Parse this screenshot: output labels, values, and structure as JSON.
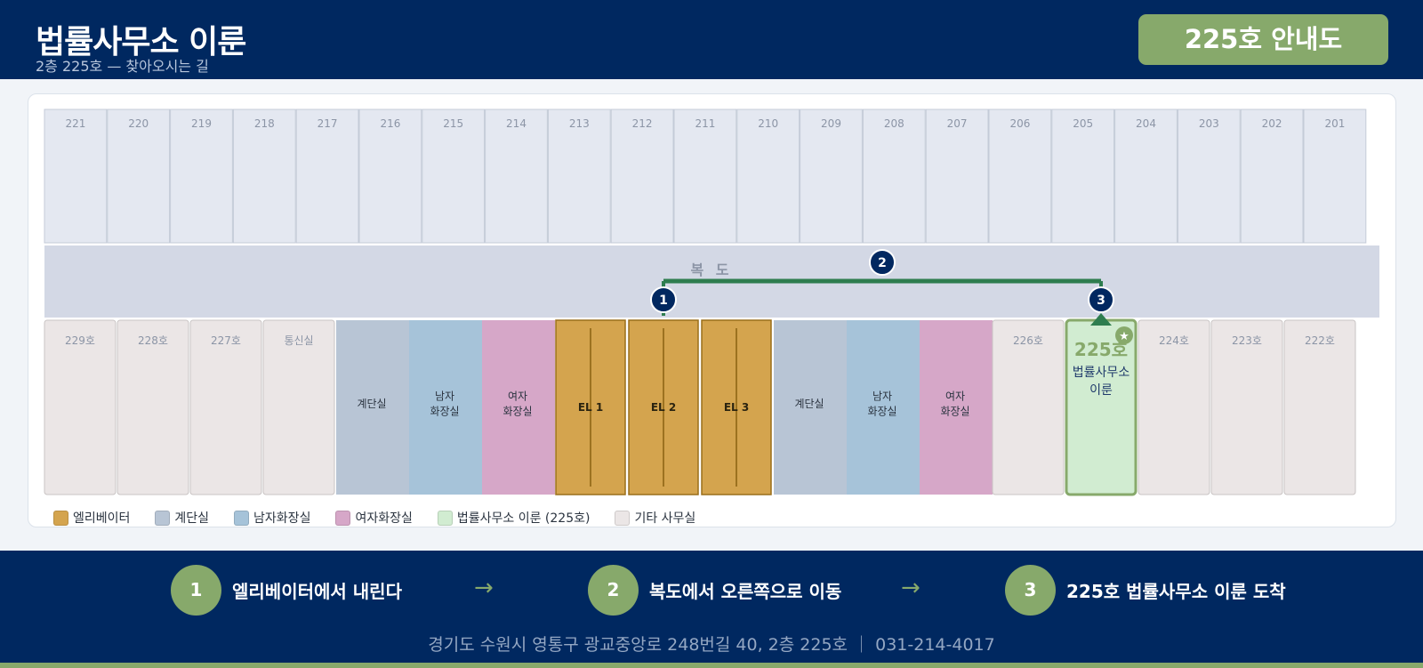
{
  "header": {
    "title": "법률사무소 이룬",
    "subtitle": "2층 225호 — 찾아오시는 길",
    "badge": "225호 안내도"
  },
  "map": {
    "corridor_label": "복 도",
    "top_rooms": [
      "221",
      "220",
      "219",
      "218",
      "217",
      "216",
      "215",
      "214",
      "213",
      "212",
      "211",
      "210",
      "209",
      "208",
      "207",
      "206",
      "205",
      "204",
      "203",
      "202",
      "201"
    ],
    "bottom_rooms": [
      {
        "label": "229호",
        "type": "office"
      },
      {
        "label": "228호",
        "type": "office"
      },
      {
        "label": "227호",
        "type": "office"
      },
      {
        "label": "통신실",
        "type": "office"
      },
      {
        "label": "계단실",
        "type": "stairs"
      },
      {
        "label": "남자\n화장실",
        "type": "men"
      },
      {
        "label": "여자\n화장실",
        "type": "women"
      },
      {
        "label": "EL 1",
        "type": "elevator"
      },
      {
        "label": "EL 2",
        "type": "elevator"
      },
      {
        "label": "EL 3",
        "type": "elevator"
      },
      {
        "label": "계단실",
        "type": "stairs"
      },
      {
        "label": "남자\n화장실",
        "type": "men"
      },
      {
        "label": "여자\n화장실",
        "type": "women"
      },
      {
        "label": "226호",
        "type": "office"
      },
      {
        "label": "225호",
        "type": "target",
        "name": "법률사무소\n이룬"
      },
      {
        "label": "224호",
        "type": "office"
      },
      {
        "label": "223호",
        "type": "office"
      },
      {
        "label": "222호",
        "type": "office"
      }
    ],
    "route_markers": [
      "1",
      "2",
      "3"
    ],
    "star_icon": "star-icon",
    "colors": {
      "elevator": "#d4a44e",
      "stairs": "#b8c5d5",
      "men": "#a6c3d9",
      "women": "#d6a7c8",
      "target": "#d1ecd1",
      "office": "#ebe6e6",
      "route": "#2e7d4f",
      "marker": "#012860"
    }
  },
  "legend": [
    {
      "label": "엘리베이터",
      "color": "#d4a44e"
    },
    {
      "label": "계단실",
      "color": "#b8c5d5"
    },
    {
      "label": "남자화장실",
      "color": "#a6c3d9"
    },
    {
      "label": "여자화장실",
      "color": "#d6a7c8"
    },
    {
      "label": "법률사무소 이룬 (225호)",
      "color": "#d1ecd1"
    },
    {
      "label": "기타 사무실",
      "color": "#ebe6e6"
    }
  ],
  "steps": [
    {
      "number": "1",
      "text": "엘리베이터에서 내린다"
    },
    {
      "number": "2",
      "text": "복도에서 오른쪽으로 이동"
    },
    {
      "number": "3",
      "text": "225호 법률사무소 이룬 도착"
    }
  ],
  "arrow_glyph": "→",
  "footer": {
    "address": "경기도 수원시 영통구 광교중앙로 248번길 40, 2층 225호 ｜ 031-214-4017"
  }
}
